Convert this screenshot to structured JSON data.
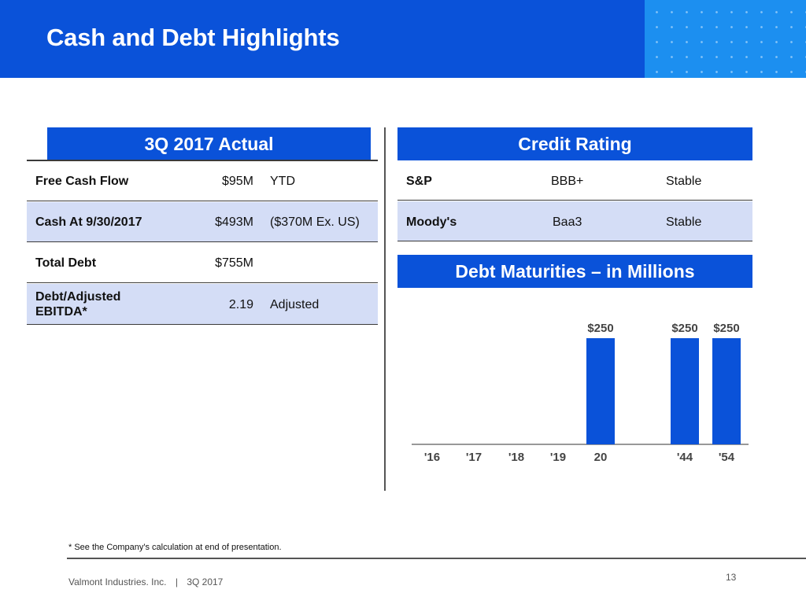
{
  "header": {
    "title": "Cash and Debt Highlights"
  },
  "left_panel": {
    "title": "3Q 2017 Actual",
    "rows": [
      {
        "label": "Free Cash Flow",
        "amount": "$95M",
        "note": "YTD"
      },
      {
        "label": "Cash At 9/30/2017",
        "amount": "$493M",
        "note": "($370M Ex. US)"
      },
      {
        "label": "Total Debt",
        "amount": "$755M",
        "note": ""
      },
      {
        "label_line1": "Debt/Adjusted",
        "label_line2": "EBITDA*",
        "amount": "2.19",
        "note": "Adjusted"
      }
    ]
  },
  "credit_rating": {
    "title": "Credit Rating",
    "rows": [
      {
        "agency": "S&P",
        "rating": "BBB+",
        "outlook": "Stable"
      },
      {
        "agency": "Moody's",
        "rating": "Baa3",
        "outlook": "Stable"
      }
    ]
  },
  "chart_data": {
    "type": "bar",
    "title": "Debt Maturities – in Millions",
    "categories": [
      "'16",
      "'17",
      "'18",
      "'19",
      "20",
      "'44",
      "'54"
    ],
    "values": [
      0,
      0,
      0,
      0,
      250,
      250,
      250
    ],
    "data_labels": [
      "",
      "",
      "",
      "",
      "$250",
      "$250",
      "$250"
    ],
    "ylim": [
      0,
      250
    ],
    "bar_color": "#0a52d9",
    "xlabel": "",
    "ylabel": ""
  },
  "footnote": "* See the Company's calculation at end of presentation.",
  "footer": {
    "company": "Valmont Industries. Inc.",
    "separator": "|",
    "period": "3Q 2017",
    "page": "13"
  },
  "colors": {
    "brand_blue": "#0a52d9",
    "row_shade": "#d4ddf6"
  }
}
